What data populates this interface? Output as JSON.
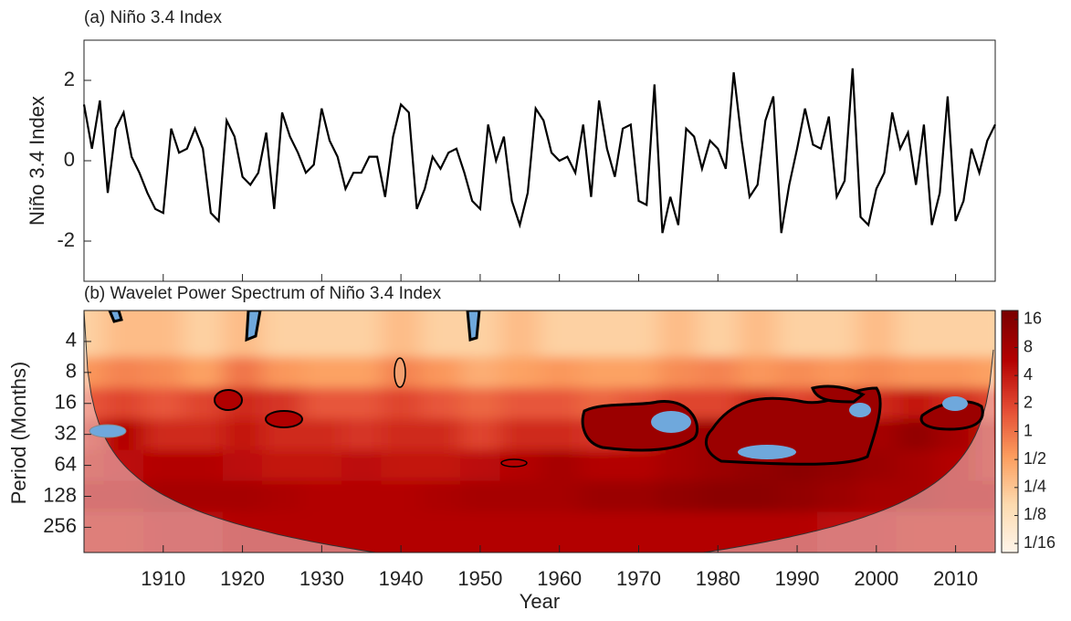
{
  "chart_data": [
    {
      "type": "line",
      "title": "(a) Niño 3.4 Index",
      "ylabel": "Niño 3.4 Index",
      "color": "#000000",
      "xlim": [
        1900,
        2015
      ],
      "xticks": [
        1910,
        1920,
        1930,
        1940,
        1950,
        1960,
        1970,
        1980,
        1990,
        2000,
        2010
      ],
      "show_xtick_labels": false,
      "ylim": [
        -3,
        3
      ],
      "yticks": [
        2,
        0,
        -2
      ],
      "x": [
        1900,
        1901,
        1902,
        1903,
        1904,
        1905,
        1906,
        1907,
        1908,
        1909,
        1910,
        1911,
        1912,
        1913,
        1914,
        1915,
        1916,
        1917,
        1918,
        1919,
        1920,
        1921,
        1922,
        1923,
        1924,
        1925,
        1926,
        1927,
        1928,
        1929,
        1930,
        1931,
        1932,
        1933,
        1934,
        1935,
        1936,
        1937,
        1938,
        1939,
        1940,
        1941,
        1942,
        1943,
        1944,
        1945,
        1946,
        1947,
        1948,
        1949,
        1950,
        1951,
        1952,
        1953,
        1954,
        1955,
        1956,
        1957,
        1958,
        1959,
        1960,
        1961,
        1962,
        1963,
        1964,
        1965,
        1966,
        1967,
        1968,
        1969,
        1970,
        1971,
        1972,
        1973,
        1974,
        1975,
        1976,
        1977,
        1978,
        1979,
        1980,
        1981,
        1982,
        1983,
        1984,
        1985,
        1986,
        1987,
        1988,
        1989,
        1990,
        1991,
        1992,
        1993,
        1994,
        1995,
        1996,
        1997,
        1998,
        1999,
        2000,
        2001,
        2002,
        2003,
        2004,
        2005,
        2006,
        2007,
        2008,
        2009,
        2010,
        2011,
        2012,
        2013,
        2014,
        2015
      ],
      "values": [
        1.4,
        0.3,
        1.5,
        -0.8,
        0.8,
        1.2,
        0.1,
        -0.3,
        -0.8,
        -1.2,
        -1.3,
        0.8,
        0.2,
        0.3,
        0.8,
        0.3,
        -1.3,
        -1.5,
        1.0,
        0.6,
        -0.4,
        -0.6,
        -0.3,
        0.7,
        -1.2,
        1.2,
        0.6,
        0.2,
        -0.3,
        -0.1,
        1.3,
        0.5,
        0.1,
        -0.7,
        -0.3,
        -0.3,
        0.1,
        0.1,
        -0.9,
        0.6,
        1.4,
        1.2,
        -1.2,
        -0.7,
        0.1,
        -0.2,
        0.2,
        0.3,
        -0.3,
        -1.0,
        -1.2,
        0.9,
        0.0,
        0.6,
        -1.0,
        -1.6,
        -0.8,
        1.3,
        1.0,
        0.2,
        0.0,
        0.1,
        -0.3,
        0.9,
        -0.9,
        1.5,
        0.3,
        -0.4,
        0.8,
        0.9,
        -1.0,
        -1.1,
        1.9,
        -1.8,
        -0.9,
        -1.6,
        0.8,
        0.6,
        -0.2,
        0.5,
        0.3,
        -0.2,
        2.2,
        0.5,
        -0.9,
        -0.6,
        1.0,
        1.6,
        -1.8,
        -0.6,
        0.3,
        1.3,
        0.4,
        0.3,
        1.1,
        -0.9,
        -0.5,
        2.3,
        -1.4,
        -1.6,
        -0.7,
        -0.3,
        1.2,
        0.3,
        0.7,
        -0.6,
        0.9,
        -1.6,
        -0.8,
        1.6,
        -1.5,
        -1.0,
        0.3,
        -0.3,
        0.5,
        0.9
      ]
    },
    {
      "type": "heatmap",
      "title": "(b) Wavelet Power Spectrum of Niño 3.4 Index",
      "xlabel": "Year",
      "ylabel": "Period (Months)",
      "xlim": [
        1900,
        2015
      ],
      "xticks": [
        1910,
        1920,
        1930,
        1940,
        1950,
        1960,
        1970,
        1980,
        1990,
        2000,
        2010
      ],
      "ylog": true,
      "ylim": [
        2,
        450
      ],
      "yticks": [
        4,
        8,
        16,
        32,
        64,
        128,
        256
      ],
      "x": [
        1900,
        1905,
        1910,
        1915,
        1920,
        1925,
        1930,
        1935,
        1940,
        1945,
        1950,
        1955,
        1960,
        1965,
        1970,
        1975,
        1980,
        1985,
        1990,
        1995,
        2000,
        2005,
        2010,
        2015
      ],
      "y": [
        4,
        8,
        16,
        32,
        64,
        128,
        256
      ],
      "z": [
        [
          0.2,
          0.3,
          0.3,
          0.2,
          0.3,
          0.2,
          0.2,
          0.2,
          0.3,
          0.2,
          0.2,
          0.3,
          0.2,
          0.2,
          0.2,
          0.3,
          0.2,
          0.3,
          0.2,
          0.2,
          0.3,
          0.2,
          0.2,
          0.2
        ],
        [
          0.6,
          0.8,
          0.7,
          0.5,
          1,
          0.6,
          0.5,
          0.5,
          0.8,
          0.6,
          0.4,
          0.5,
          0.6,
          0.5,
          0.5,
          0.7,
          0.8,
          0.6,
          0.7,
          0.6,
          0.7,
          0.6,
          0.6,
          0.5
        ],
        [
          1.5,
          2,
          1.5,
          2,
          3,
          2.5,
          1.5,
          1.5,
          2,
          1.5,
          1.2,
          1.5,
          1.5,
          1.2,
          1.5,
          2,
          2,
          3,
          2,
          3,
          3,
          4,
          3,
          2
        ],
        [
          3,
          6,
          3,
          3,
          4,
          3,
          3,
          2.5,
          3,
          3,
          2,
          3,
          3,
          2.5,
          3,
          8,
          10,
          6,
          8,
          10,
          8,
          12,
          8,
          4
        ],
        [
          4,
          5,
          6,
          6,
          5,
          4,
          4,
          5,
          4,
          4,
          5,
          6,
          8,
          6,
          6,
          8,
          10,
          12,
          14,
          12,
          10,
          8,
          6,
          4
        ],
        [
          6,
          6,
          8,
          8,
          8,
          7,
          6,
          6,
          6,
          7,
          8,
          8,
          8,
          10,
          10,
          12,
          14,
          14,
          12,
          10,
          8,
          8,
          6,
          6
        ],
        [
          4,
          4,
          5,
          5,
          6,
          6,
          6,
          6,
          6,
          6,
          6,
          6,
          6,
          6,
          6,
          6,
          6,
          6,
          6,
          5,
          5,
          4,
          4,
          4
        ]
      ],
      "colormap": [
        "#fff5eb",
        "#fddbb0",
        "#fc9d5e",
        "#e34a33",
        "#b30000",
        "#7a0000"
      ],
      "clim": [
        0.05,
        20
      ],
      "colorbar_ticks": [
        16,
        8,
        4,
        2,
        1,
        {
          "value": 0.5,
          "label": "1/2"
        },
        {
          "value": 0.25,
          "label": "1/4"
        },
        {
          "value": 0.125,
          "label": "1/8"
        },
        {
          "value": 0.0625,
          "label": "1/16"
        }
      ]
    }
  ]
}
